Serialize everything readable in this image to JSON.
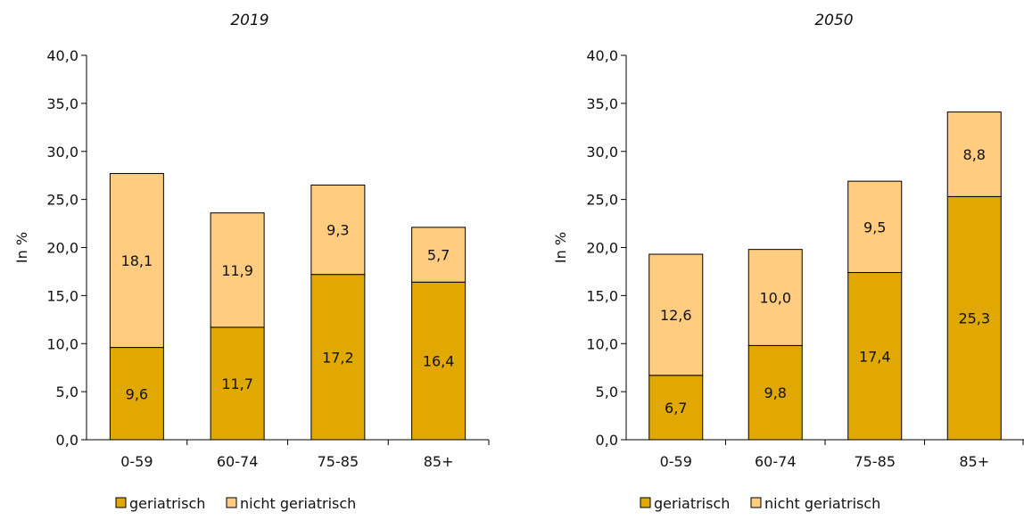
{
  "chart_data": [
    {
      "type": "bar",
      "stacked": true,
      "title": "2019",
      "ylabel": "In %",
      "ylim": [
        0,
        40
      ],
      "yticks": [
        "0,0",
        "5,0",
        "10,0",
        "15,0",
        "20,0",
        "25,0",
        "30,0",
        "35,0",
        "40,0"
      ],
      "categories": [
        "0-59",
        "60-74",
        "75-85",
        "85+"
      ],
      "series": [
        {
          "name": "geriatrisch",
          "values": [
            9.6,
            11.7,
            17.2,
            16.4
          ],
          "labels": [
            "9,6",
            "11,7",
            "17,2",
            "16,4"
          ],
          "color": "#E0A800"
        },
        {
          "name": "nicht geriatrisch",
          "values": [
            18.1,
            11.9,
            9.3,
            5.7
          ],
          "labels": [
            "18,1",
            "11,9",
            "9,3",
            "5,7"
          ],
          "color": "#FFCC80"
        }
      ],
      "legend": "bottom",
      "grid": false
    },
    {
      "type": "bar",
      "stacked": true,
      "title": "2050",
      "ylabel": "In %",
      "ylim": [
        0,
        40
      ],
      "yticks": [
        "0,0",
        "5,0",
        "10,0",
        "15,0",
        "20,0",
        "25,0",
        "30,0",
        "35,0",
        "40,0"
      ],
      "categories": [
        "0-59",
        "60-74",
        "75-85",
        "85+"
      ],
      "series": [
        {
          "name": "geriatrisch",
          "values": [
            6.7,
            9.8,
            17.4,
            25.3
          ],
          "labels": [
            "6,7",
            "9,8",
            "17,4",
            "25,3"
          ],
          "color": "#E0A800"
        },
        {
          "name": "nicht geriatrisch",
          "values": [
            12.6,
            10.0,
            9.5,
            8.8
          ],
          "labels": [
            "12,6",
            "10,0",
            "9,5",
            "8,8"
          ],
          "color": "#FFCC80"
        }
      ],
      "legend": "bottom",
      "grid": false
    }
  ]
}
